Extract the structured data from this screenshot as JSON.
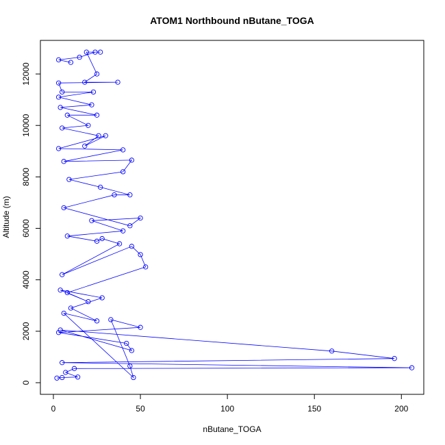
{
  "chart_data": {
    "type": "line",
    "title": "ATOM1 Northbound nButane_TOGA",
    "xlabel": "nButane_TOGA",
    "ylabel": "Altitude (m)",
    "xlim": [
      0,
      210
    ],
    "ylim": [
      0,
      13000
    ],
    "xticks": [
      0,
      50,
      100,
      150,
      200
    ],
    "yticks": [
      0,
      2000,
      4000,
      6000,
      8000,
      10000,
      12000
    ],
    "grid": false,
    "legend": "none",
    "color": "#0000ff",
    "marker": "open-circle",
    "series": [
      {
        "name": "",
        "points": [
          {
            "x": 2,
            "y": 180
          },
          {
            "x": 5,
            "y": 200
          },
          {
            "x": 14,
            "y": 220
          },
          {
            "x": 7,
            "y": 400
          },
          {
            "x": 12,
            "y": 550
          },
          {
            "x": 206,
            "y": 580
          },
          {
            "x": 5,
            "y": 780
          },
          {
            "x": 196,
            "y": 940
          },
          {
            "x": 160,
            "y": 1230
          },
          {
            "x": 4,
            "y": 2050
          },
          {
            "x": 45,
            "y": 1250
          },
          {
            "x": 42,
            "y": 1530
          },
          {
            "x": 3,
            "y": 1950
          },
          {
            "x": 50,
            "y": 2150
          },
          {
            "x": 33,
            "y": 2450
          },
          {
            "x": 44,
            "y": 650
          },
          {
            "x": 46,
            "y": 200
          },
          {
            "x": 6,
            "y": 2700
          },
          {
            "x": 25,
            "y": 2400
          },
          {
            "x": 10,
            "y": 2900
          },
          {
            "x": 28,
            "y": 3300
          },
          {
            "x": 4,
            "y": 3600
          },
          {
            "x": 20,
            "y": 3150
          },
          {
            "x": 8,
            "y": 3500
          },
          {
            "x": 53,
            "y": 4500
          },
          {
            "x": 50,
            "y": 4980
          },
          {
            "x": 45,
            "y": 5300
          },
          {
            "x": 5,
            "y": 4200
          },
          {
            "x": 38,
            "y": 5400
          },
          {
            "x": 28,
            "y": 5600
          },
          {
            "x": 25,
            "y": 5500
          },
          {
            "x": 8,
            "y": 5700
          },
          {
            "x": 40,
            "y": 5900
          },
          {
            "x": 22,
            "y": 6300
          },
          {
            "x": 50,
            "y": 6400
          },
          {
            "x": 44,
            "y": 6100
          },
          {
            "x": 6,
            "y": 6800
          },
          {
            "x": 35,
            "y": 7300
          },
          {
            "x": 44,
            "y": 7300
          },
          {
            "x": 27,
            "y": 7600
          },
          {
            "x": 9,
            "y": 7900
          },
          {
            "x": 40,
            "y": 8200
          },
          {
            "x": 45,
            "y": 8650
          },
          {
            "x": 6,
            "y": 8600
          },
          {
            "x": 40,
            "y": 9050
          },
          {
            "x": 3,
            "y": 9100
          },
          {
            "x": 30,
            "y": 9600
          },
          {
            "x": 18,
            "y": 9200
          },
          {
            "x": 26,
            "y": 9600
          },
          {
            "x": 5,
            "y": 9900
          },
          {
            "x": 20,
            "y": 10000
          },
          {
            "x": 8,
            "y": 10400
          },
          {
            "x": 25,
            "y": 10400
          },
          {
            "x": 4,
            "y": 10700
          },
          {
            "x": 22,
            "y": 10800
          },
          {
            "x": 3,
            "y": 11100
          },
          {
            "x": 23,
            "y": 11300
          },
          {
            "x": 5,
            "y": 11300
          },
          {
            "x": 3,
            "y": 11650
          },
          {
            "x": 37,
            "y": 11680
          },
          {
            "x": 18,
            "y": 11680
          },
          {
            "x": 25,
            "y": 12000
          },
          {
            "x": 19,
            "y": 12850
          },
          {
            "x": 27,
            "y": 12850
          },
          {
            "x": 24,
            "y": 12850
          },
          {
            "x": 15,
            "y": 12650
          },
          {
            "x": 3,
            "y": 12550
          },
          {
            "x": 10,
            "y": 12450
          }
        ]
      }
    ]
  }
}
